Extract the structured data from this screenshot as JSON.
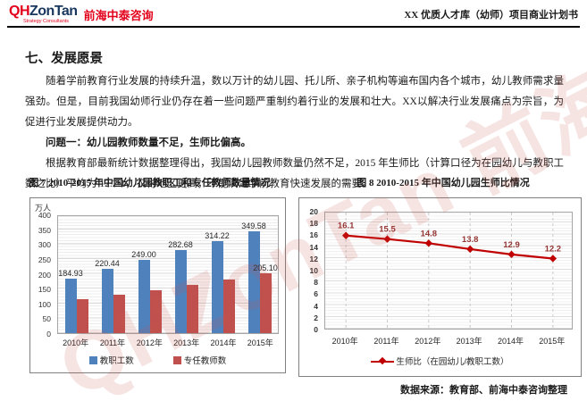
{
  "header": {
    "logo_qh": "QH",
    "logo_zontan": "ZonTan",
    "logo_tagline": "Strategy Consultants",
    "company_name": "前海中泰咨询",
    "doc_title": "XX 优质人才库（幼师）项目商业计划书"
  },
  "section": {
    "title": "七、发展愿景"
  },
  "paragraphs": {
    "p1": "随着学前教育行业发展的持续升温，数以万计的幼儿园、托儿所、亲子机构等遍布国内各个城市，幼儿教师需求量强劲。但是，目前我国幼师行业仍存在着一些问题严重制约着行业的发展和壮大。XX以解决行业发展痛点为宗旨，为促进行业发展提供动力。",
    "p2": "问题一：幼儿园教师数量不足，生师比偏高。",
    "p3": "根据教育部最新统计数据整理得出，我国幼儿园教师数量仍然不足，2015 年生师比（计算口径为在园幼儿与教职工数之比）平均为 12.2:1，农村地区更高，不能满足学前教育快速发展的需要。"
  },
  "figures": {
    "fig7_caption": "图 7 2010-2015 年中国幼儿园教职工和专任教师数量情况",
    "fig8_caption": "图 8 2010-2015 年中国幼儿园生师比情况"
  },
  "source": "数据来源：教育部、前海中泰咨询整理",
  "watermark": "QHZonTan 前海中泰咨询",
  "chart_data": [
    {
      "type": "bar",
      "title": "图7 2010-2015年中国幼儿园教职工和专任教师数量情况",
      "categories": [
        "2010年",
        "2011年",
        "2012年",
        "2013年",
        "2014年",
        "2015年"
      ],
      "series": [
        {
          "name": "教职工数",
          "color": "#4f81bd",
          "values": [
            184.93,
            220.44,
            249.0,
            282.68,
            314.22,
            349.58
          ],
          "labels": [
            "184.93",
            "220.44",
            "249.00",
            "282.68",
            "314.22",
            "349.58"
          ]
        },
        {
          "name": "专任教师数",
          "color": "#c0504d",
          "values": [
            115,
            132,
            148,
            166,
            184,
            205.1
          ],
          "labels": [
            "",
            "",
            "",
            "",
            "",
            "205.10"
          ]
        }
      ],
      "xlabel": "",
      "ylabel": "万人",
      "ylim": [
        0,
        400
      ],
      "ytick_step": 50,
      "grid": true,
      "legend_position": "bottom"
    },
    {
      "type": "line",
      "title": "图8 2010-2015年中国幼儿园生师比情况",
      "categories": [
        "2010年",
        "2011年",
        "2012年",
        "2013年",
        "2014年",
        "2015年"
      ],
      "series": [
        {
          "name": "生师比（在园幼儿/教职工数）",
          "color": "#c00000",
          "values": [
            16.1,
            15.5,
            14.8,
            13.8,
            12.9,
            12.2
          ],
          "labels": [
            "16.1",
            "15.5",
            "14.8",
            "13.8",
            "12.9",
            "12.2"
          ]
        }
      ],
      "xlabel": "",
      "ylabel": "",
      "ylim": [
        0,
        20
      ],
      "ytick_step": 2,
      "grid": true,
      "legend_position": "bottom"
    }
  ]
}
